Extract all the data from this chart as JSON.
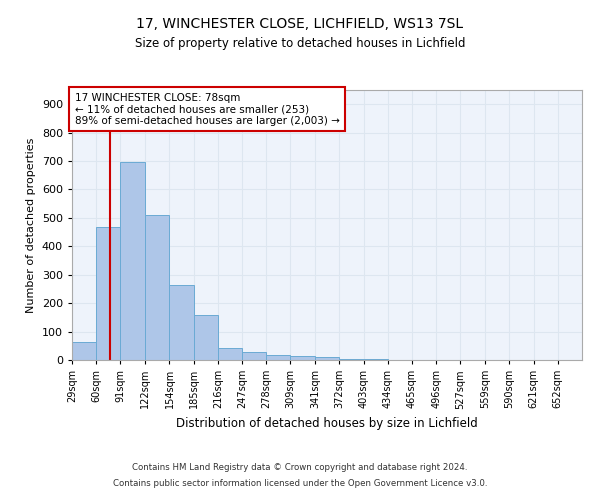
{
  "title1": "17, WINCHESTER CLOSE, LICHFIELD, WS13 7SL",
  "title2": "Size of property relative to detached houses in Lichfield",
  "xlabel": "Distribution of detached houses by size in Lichfield",
  "ylabel": "Number of detached properties",
  "footer1": "Contains HM Land Registry data © Crown copyright and database right 2024.",
  "footer2": "Contains public sector information licensed under the Open Government Licence v3.0.",
  "bin_labels": [
    "29sqm",
    "60sqm",
    "91sqm",
    "122sqm",
    "154sqm",
    "185sqm",
    "216sqm",
    "247sqm",
    "278sqm",
    "309sqm",
    "341sqm",
    "372sqm",
    "403sqm",
    "434sqm",
    "465sqm",
    "496sqm",
    "527sqm",
    "559sqm",
    "590sqm",
    "621sqm",
    "652sqm"
  ],
  "bin_edges": [
    29,
    60,
    91,
    122,
    154,
    185,
    216,
    247,
    278,
    309,
    341,
    372,
    403,
    434,
    465,
    496,
    527,
    559,
    590,
    621,
    652
  ],
  "bar_heights": [
    62,
    467,
    697,
    510,
    265,
    158,
    43,
    28,
    16,
    14,
    10,
    5,
    5,
    0,
    0,
    0,
    0,
    0,
    0,
    0
  ],
  "bar_color": "#aec6e8",
  "bar_edge_color": "#6aaad4",
  "grid_color": "#dde6f0",
  "background_color": "#eef3fb",
  "vline_x": 78,
  "vline_color": "#cc0000",
  "annotation_text": "17 WINCHESTER CLOSE: 78sqm\n← 11% of detached houses are smaller (253)\n89% of semi-detached houses are larger (2,003) →",
  "annotation_box_color": "#ffffff",
  "annotation_box_edge": "#cc0000",
  "ylim": [
    0,
    950
  ],
  "yticks": [
    0,
    100,
    200,
    300,
    400,
    500,
    600,
    700,
    800,
    900
  ]
}
